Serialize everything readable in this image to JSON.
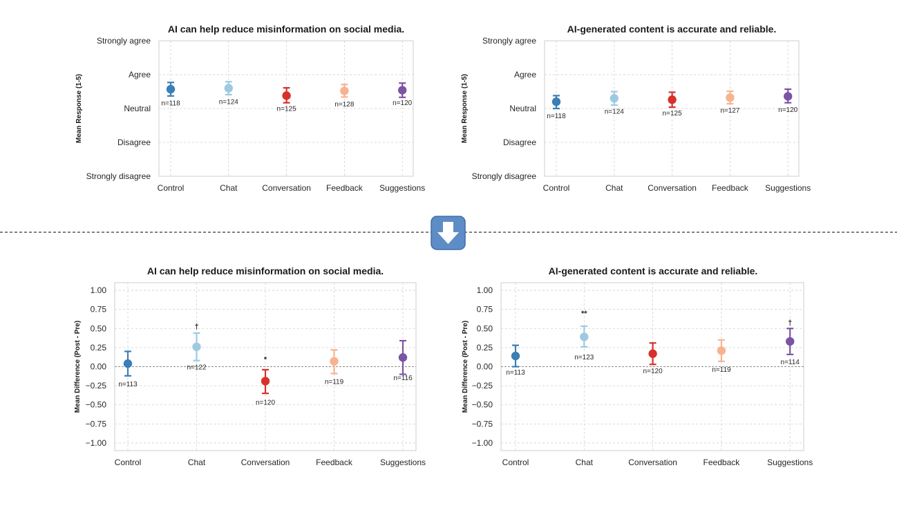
{
  "divider_icon": "down-arrow-icon",
  "colors": {
    "Control": "#3b7fb6",
    "Chat": "#9ecae1",
    "Conversation": "#d7312c",
    "Feedback": "#f7b38f",
    "Suggestions": "#7b54a3",
    "arrow_box": "#5e8cc6"
  },
  "chart_data": [
    {
      "id": "top-left",
      "type": "scatter",
      "title": "AI can help reduce misinformation on social media.",
      "ylabel": "Mean Response (1-5)",
      "xlabel": "",
      "categories": [
        "Control",
        "Chat",
        "Conversation",
        "Feedback",
        "Suggestions"
      ],
      "yticks": [
        1,
        2,
        3,
        4,
        5
      ],
      "yticklabels": [
        "Strongly disagree",
        "Disagree",
        "Neutral",
        "Agree",
        "Strongly agree"
      ],
      "ylim": [
        1,
        5
      ],
      "values": [
        3.57,
        3.6,
        3.38,
        3.52,
        3.54
      ],
      "err_low": [
        3.37,
        3.41,
        3.17,
        3.34,
        3.33
      ],
      "err_high": [
        3.77,
        3.79,
        3.61,
        3.71,
        3.75
      ],
      "n_labels": [
        "n=118",
        "n=124",
        "n=125",
        "n=128",
        "n=120"
      ],
      "n_values": [
        3.17,
        3.21,
        3.01,
        3.14,
        3.18
      ],
      "sig_marks": [
        "",
        "",
        "",
        "",
        ""
      ],
      "grid": true
    },
    {
      "id": "top-right",
      "type": "scatter",
      "title": "AI-generated content is accurate and reliable.",
      "ylabel": "Mean Response (1-5)",
      "xlabel": "",
      "categories": [
        "Control",
        "Chat",
        "Conversation",
        "Feedback",
        "Suggestions"
      ],
      "yticks": [
        1,
        2,
        3,
        4,
        5
      ],
      "yticklabels": [
        "Strongly disagree",
        "Disagree",
        "Neutral",
        "Agree",
        "Strongly agree"
      ],
      "ylim": [
        1,
        5
      ],
      "values": [
        3.2,
        3.3,
        3.26,
        3.32,
        3.36
      ],
      "err_low": [
        3.0,
        3.1,
        3.04,
        3.14,
        3.17
      ],
      "err_high": [
        3.38,
        3.5,
        3.48,
        3.51,
        3.57
      ],
      "n_labels": [
        "n=118",
        "n=124",
        "n=125",
        "n=127",
        "n=120"
      ],
      "n_values": [
        2.8,
        2.93,
        2.88,
        2.96,
        2.98
      ],
      "sig_marks": [
        "",
        "",
        "",
        "",
        ""
      ],
      "grid": true
    },
    {
      "id": "bottom-left",
      "type": "scatter",
      "title": "AI can help reduce misinformation on social media.",
      "ylabel": "Mean Difference (Post - Pre)",
      "xlabel": "",
      "categories": [
        "Control",
        "Chat",
        "Conversation",
        "Feedback",
        "Suggestions"
      ],
      "yticks": [
        -1.0,
        -0.75,
        -0.5,
        -0.25,
        0.0,
        0.25,
        0.5,
        0.75,
        1.0
      ],
      "yticklabels": [
        "−1.00",
        "−0.75",
        "−0.50",
        "−0.25",
        "0.00",
        "0.25",
        "0.50",
        "0.75",
        "1.00"
      ],
      "ylim": [
        -1.1,
        1.1
      ],
      "values": [
        0.04,
        0.26,
        -0.19,
        0.07,
        0.12
      ],
      "err_low": [
        -0.12,
        0.08,
        -0.35,
        -0.09,
        -0.1
      ],
      "err_high": [
        0.2,
        0.44,
        -0.04,
        0.22,
        0.34
      ],
      "n_labels": [
        "n=113",
        "n=122",
        "n=120",
        "n=119",
        "n=116"
      ],
      "n_values": [
        -0.22,
        0.0,
        -0.46,
        -0.19,
        -0.14
      ],
      "sig_marks": [
        "",
        "†",
        "*",
        "",
        ""
      ],
      "sig_values": [
        0,
        0.53,
        0.1,
        0,
        0
      ],
      "grid": true
    },
    {
      "id": "bottom-right",
      "type": "scatter",
      "title": "AI-generated content is accurate and reliable.",
      "ylabel": "Mean Difference (Post - Pre)",
      "xlabel": "",
      "categories": [
        "Control",
        "Chat",
        "Conversation",
        "Feedback",
        "Suggestions"
      ],
      "yticks": [
        -1.0,
        -0.75,
        -0.5,
        -0.25,
        0.0,
        0.25,
        0.5,
        0.75,
        1.0
      ],
      "yticklabels": [
        "−1.00",
        "−0.75",
        "−0.50",
        "−0.25",
        "0.00",
        "0.25",
        "0.50",
        "0.75",
        "1.00"
      ],
      "ylim": [
        -1.1,
        1.1
      ],
      "values": [
        0.14,
        0.39,
        0.17,
        0.21,
        0.33
      ],
      "err_low": [
        0.0,
        0.26,
        0.03,
        0.07,
        0.16
      ],
      "err_high": [
        0.28,
        0.53,
        0.31,
        0.35,
        0.5
      ],
      "n_labels": [
        "n=113",
        "n=123",
        "n=120",
        "n=119",
        "n=114"
      ],
      "n_values": [
        -0.07,
        0.13,
        -0.05,
        -0.03,
        0.07
      ],
      "sig_marks": [
        "",
        "**",
        "",
        "",
        "†"
      ],
      "sig_values": [
        0,
        0.7,
        0,
        0,
        0.58
      ],
      "grid": true
    }
  ]
}
